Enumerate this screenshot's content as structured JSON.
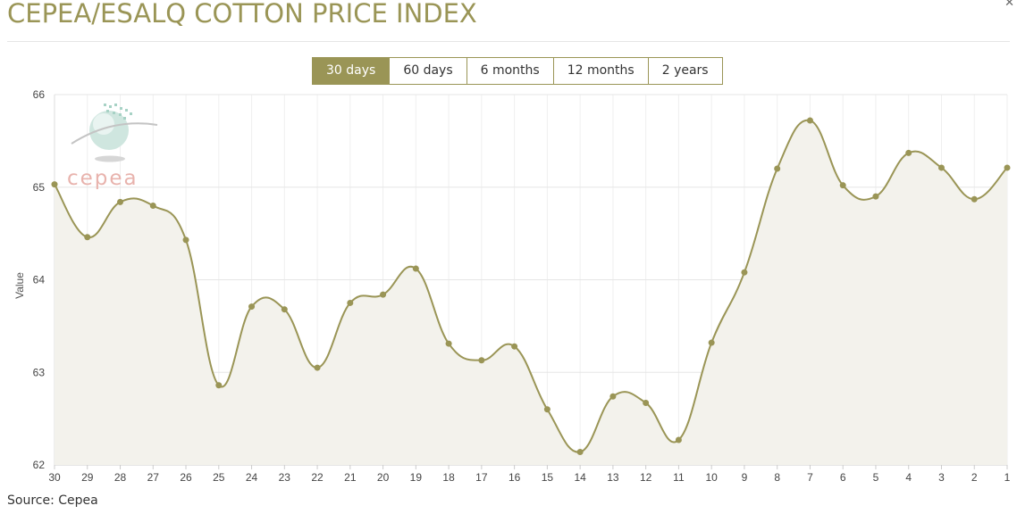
{
  "page": {
    "title": "CEPEA/ESALQ COTTON PRICE INDEX",
    "close_symbol": "✕",
    "source": "Source: Cepea",
    "tabs": [
      {
        "label": "30 days",
        "active": true
      },
      {
        "label": "60 days",
        "active": false
      },
      {
        "label": "6 months",
        "active": false
      },
      {
        "label": "12 months",
        "active": false
      },
      {
        "label": "2 years",
        "active": false
      }
    ],
    "colors": {
      "accent": "#9a9556",
      "line": "#9a9556",
      "area": "#f3f2ec",
      "grid": "#ebebeb",
      "logo_text": "#e8b3ad",
      "logo_globe": "#b9d9cf"
    }
  },
  "watermark": {
    "text": "cepea",
    "icon": "globe-logo-icon"
  },
  "chart_data": {
    "type": "area",
    "title": "",
    "xlabel": "",
    "ylabel": "Value",
    "ylim": [
      62,
      66
    ],
    "yticks": [
      62,
      63,
      64,
      65,
      66
    ],
    "grid": true,
    "legend": "none",
    "categories": [
      "30",
      "29",
      "28",
      "27",
      "26",
      "25",
      "24",
      "23",
      "22",
      "21",
      "20",
      "19",
      "18",
      "17",
      "16",
      "15",
      "14",
      "13",
      "12",
      "11",
      "10",
      "9",
      "8",
      "7",
      "6",
      "5",
      "4",
      "3",
      "2",
      "1"
    ],
    "series": [
      {
        "values": [
          65.03,
          64.46,
          64.84,
          64.8,
          64.43,
          62.86,
          63.71,
          63.68,
          63.05,
          63.75,
          63.84,
          64.12,
          63.31,
          63.13,
          63.28,
          62.6,
          62.14,
          62.74,
          62.67,
          62.27,
          63.32,
          64.08,
          65.2,
          65.72,
          65.02,
          64.9,
          65.37,
          65.21,
          64.87,
          65.21
        ]
      }
    ]
  }
}
